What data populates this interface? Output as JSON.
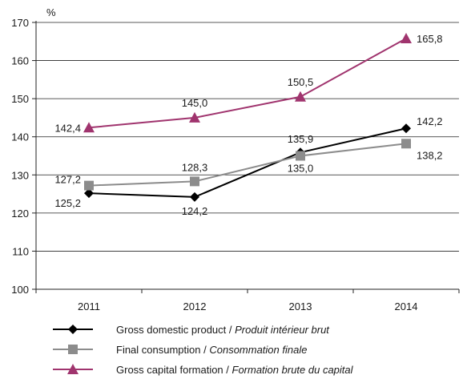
{
  "chart_data": {
    "type": "line",
    "ylabel": "%",
    "ylim": [
      100,
      170
    ],
    "yticks": [
      100,
      110,
      120,
      130,
      140,
      150,
      160,
      170
    ],
    "categories": [
      "2011",
      "2012",
      "2013",
      "2014"
    ],
    "grid": true,
    "legend_position": "bottom",
    "series": [
      {
        "name": "Gross domestic product",
        "name_fr": "Produit intérieur brut",
        "marker": "diamond",
        "color": "#000000",
        "values": [
          125.2,
          124.2,
          135.9,
          142.2
        ],
        "labels": [
          "125,2",
          "124,2",
          "135,9",
          "142,2"
        ]
      },
      {
        "name": "Final consumption",
        "name_fr": "Consommation finale",
        "marker": "square",
        "color": "#8c8c8c",
        "values": [
          127.2,
          128.3,
          135.0,
          138.2
        ],
        "labels": [
          "127,2",
          "128,3",
          "135,0",
          "138,2"
        ]
      },
      {
        "name": "Gross capital formation",
        "name_fr": "Formation brute du capital",
        "marker": "triangle",
        "color": "#a0346e",
        "values": [
          142.4,
          145.0,
          150.5,
          165.8
        ],
        "labels": [
          "142,4",
          "145,0",
          "150,5",
          "165,8"
        ]
      }
    ]
  }
}
